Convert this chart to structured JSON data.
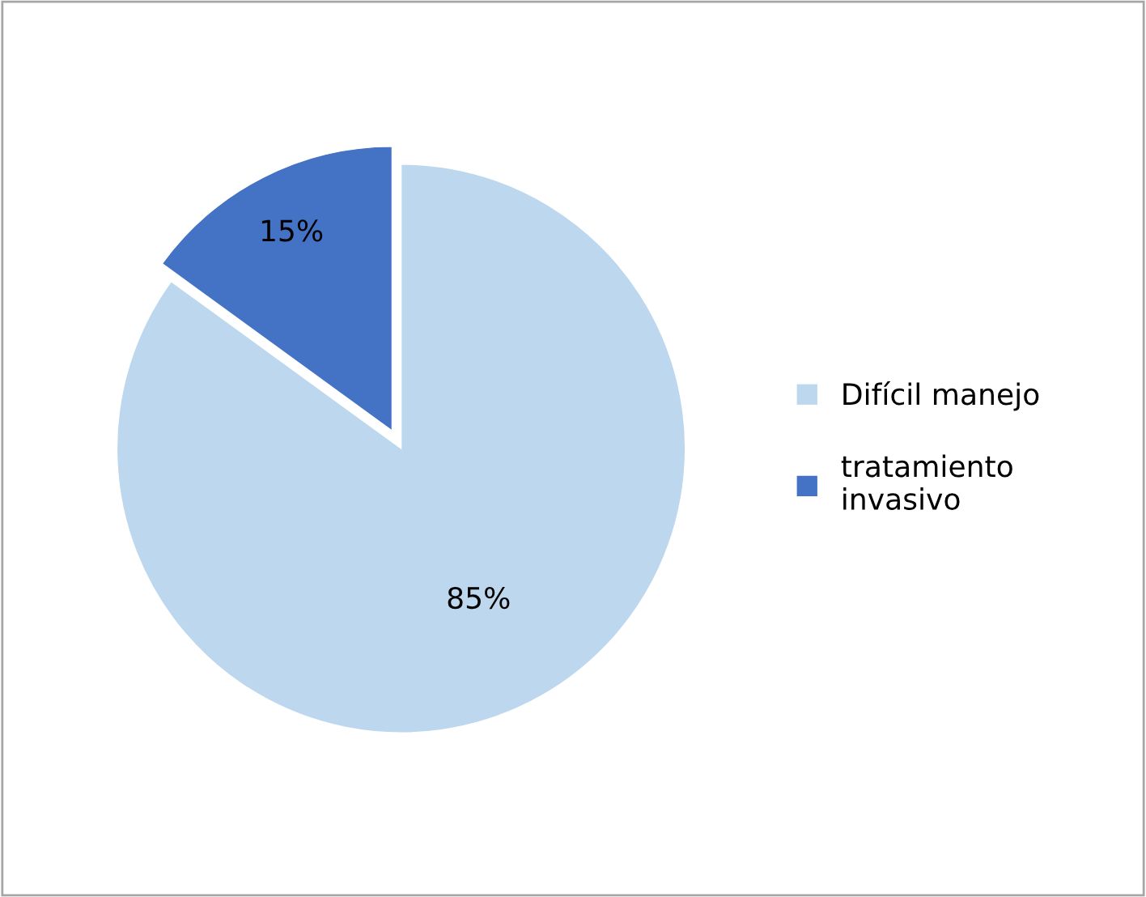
{
  "chart_data": {
    "type": "pie",
    "categories": [
      "Difícil manejo",
      "tratamiento invasivo"
    ],
    "values": [
      85,
      15
    ],
    "colors": [
      "#bdd7ee",
      "#4472c4"
    ],
    "value_labels": [
      "85%",
      "15%"
    ],
    "legend": "right"
  }
}
